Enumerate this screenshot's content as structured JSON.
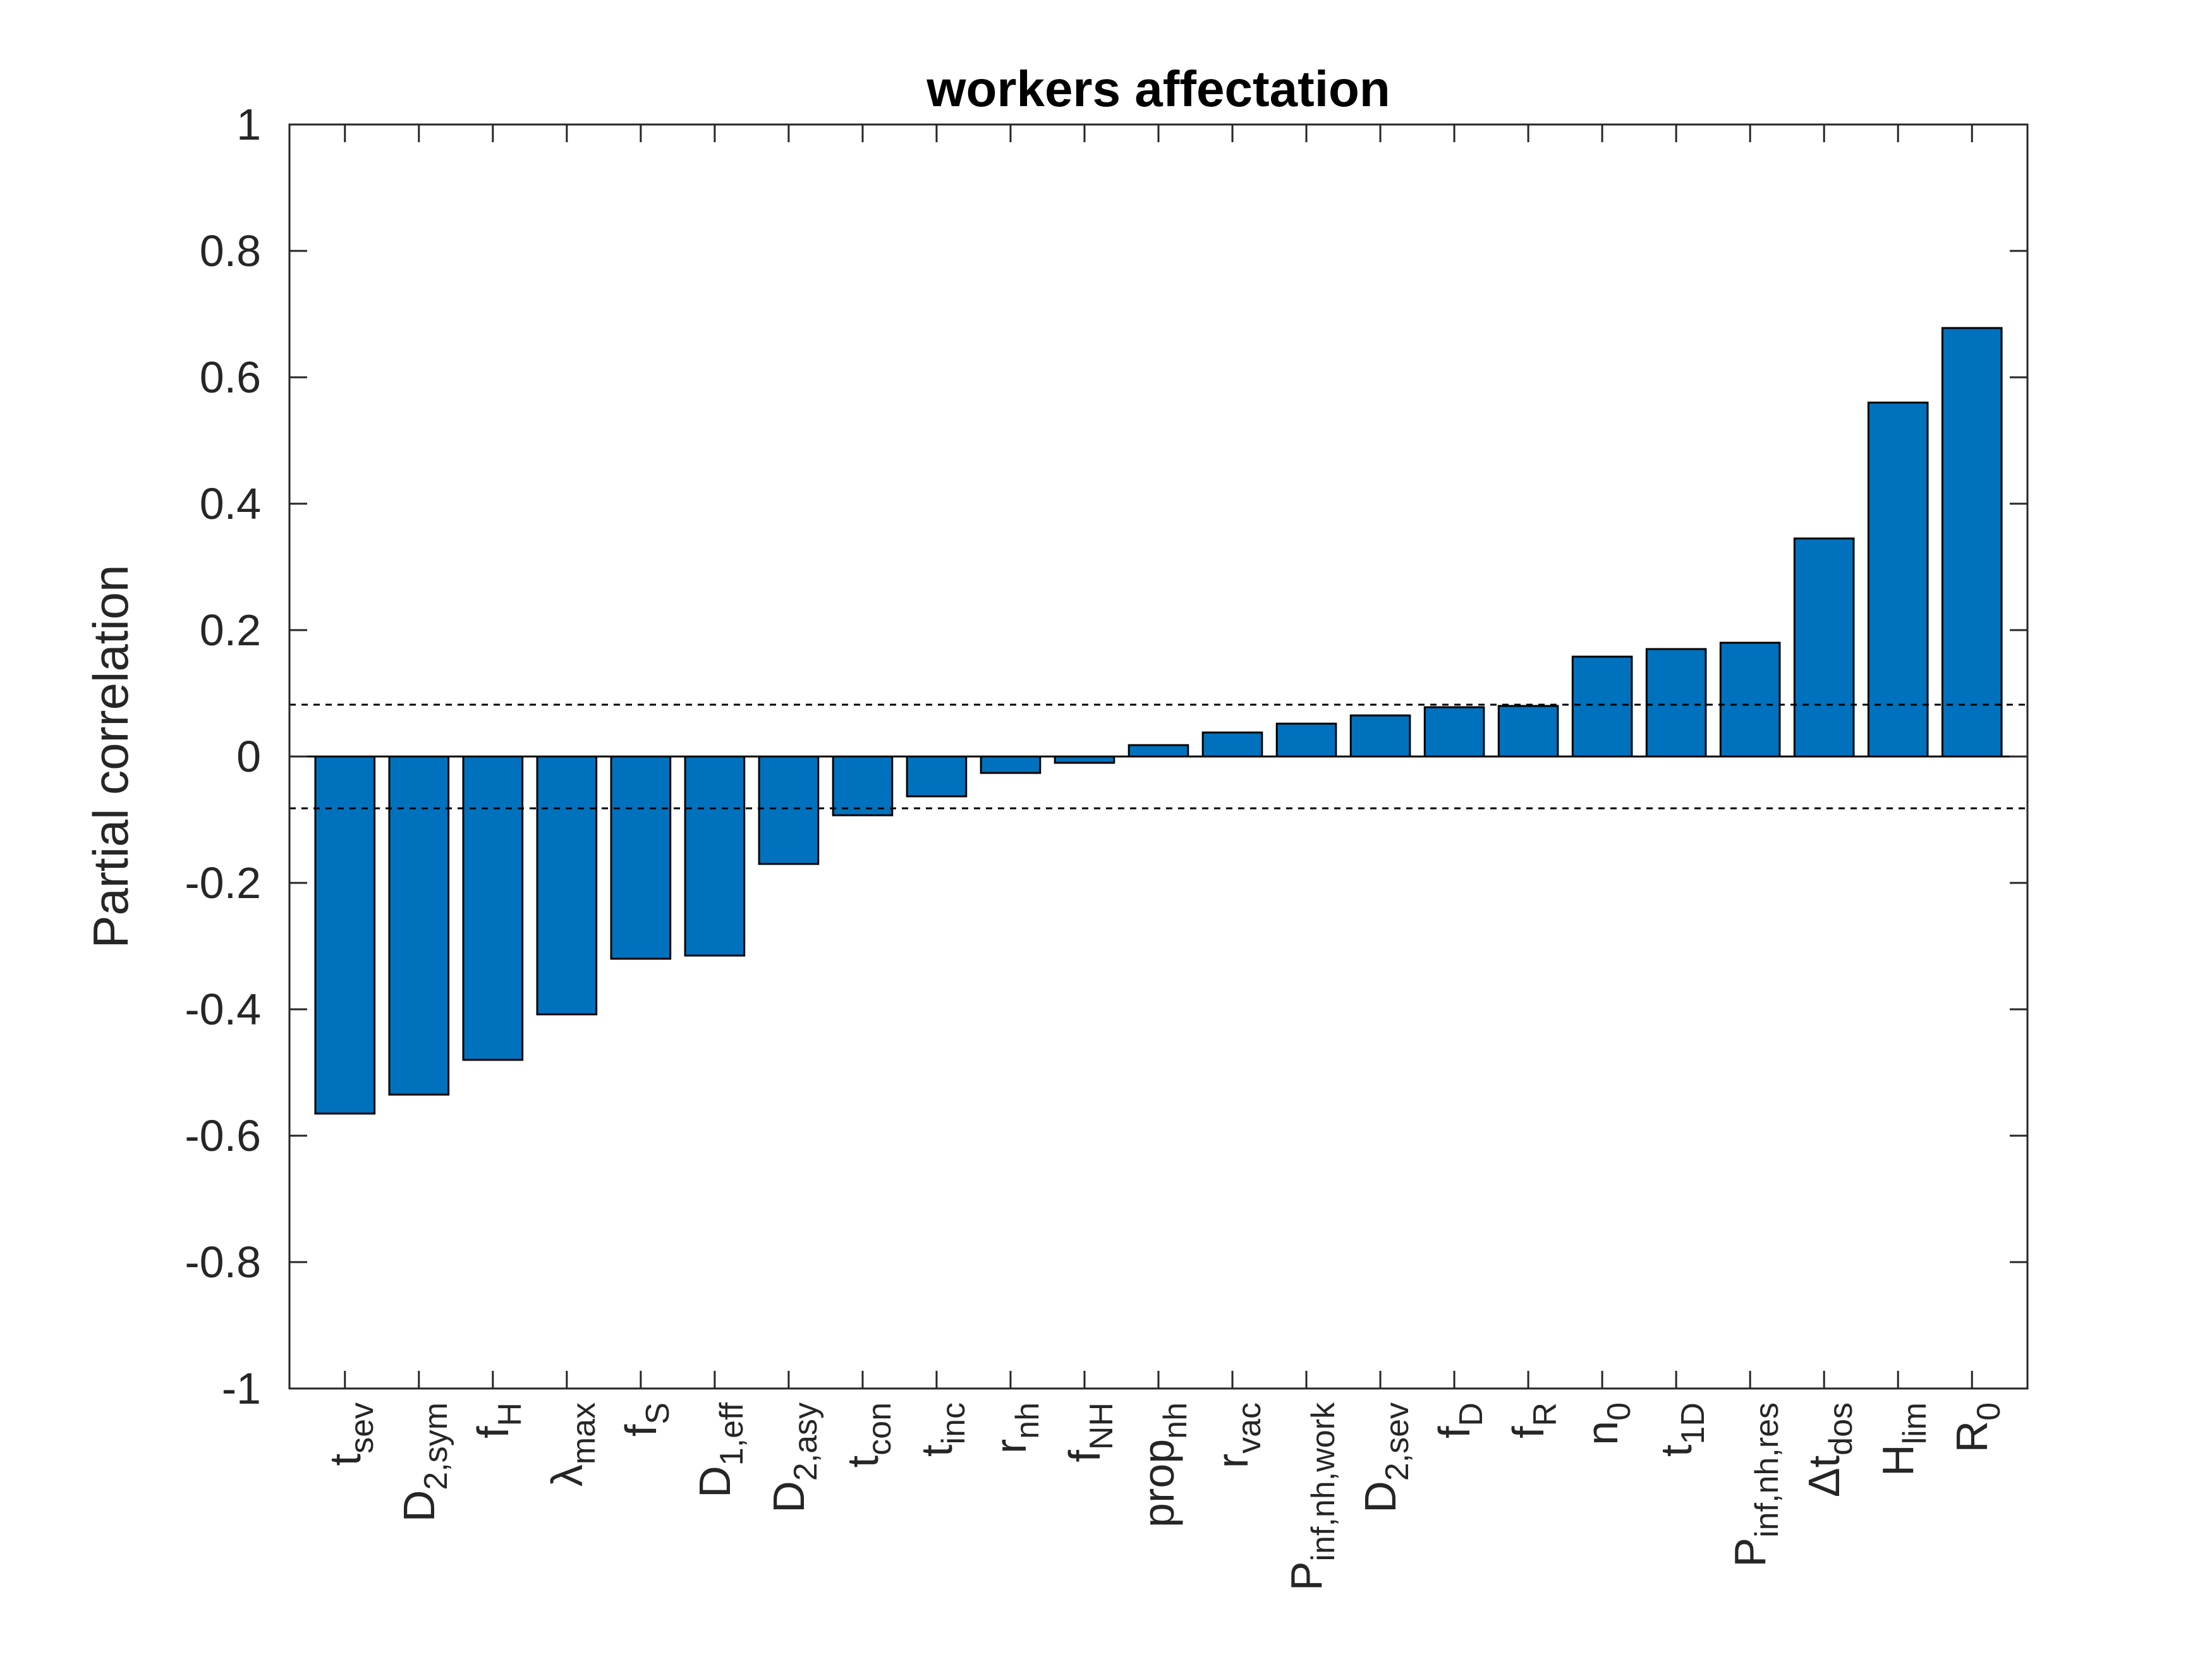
{
  "chart_data": {
    "type": "bar",
    "title": "workers affectation",
    "xlabel": "",
    "ylabel": "Partial correlation",
    "ylim": [
      -1,
      1
    ],
    "yticks": [
      -1,
      -0.8,
      -0.6,
      -0.4,
      -0.2,
      0,
      0.2,
      0.4,
      0.6,
      0.8,
      1
    ],
    "ytick_labels": [
      "-1",
      "-0.8",
      "-0.6",
      "-0.4",
      "-0.2",
      "0",
      "0.2",
      "0.4",
      "0.6",
      "0.8",
      "1"
    ],
    "threshold": 0.082,
    "bar_color": "#0072BD",
    "categories": [
      {
        "base": "t",
        "sub": "sev"
      },
      {
        "base": "D",
        "sub": "2,sym"
      },
      {
        "base": "f",
        "sub": "H"
      },
      {
        "base": "λ",
        "sub": "max"
      },
      {
        "base": "f",
        "sub": "S"
      },
      {
        "base": "D",
        "sub": "1,eff"
      },
      {
        "base": "D",
        "sub": "2,asy"
      },
      {
        "base": "t",
        "sub": "con"
      },
      {
        "base": "t",
        "sub": "inc"
      },
      {
        "base": "r",
        "sub": "nh"
      },
      {
        "base": "f",
        "sub": "NH"
      },
      {
        "base": "prop",
        "sub": "nh"
      },
      {
        "base": "r",
        "sub": "vac"
      },
      {
        "base": "P",
        "sub": "inf,nh,work"
      },
      {
        "base": "D",
        "sub": "2,sev"
      },
      {
        "base": "f",
        "sub": "D"
      },
      {
        "base": "f",
        "sub": "R"
      },
      {
        "base": "n",
        "sub": "0"
      },
      {
        "base": "t",
        "sub": "1D"
      },
      {
        "base": "P",
        "sub": "inf,nh,res"
      },
      {
        "base": "Δt",
        "sub": "dos"
      },
      {
        "base": "H",
        "sub": "lim"
      },
      {
        "base": "R",
        "sub": "0"
      }
    ],
    "values": [
      -0.565,
      -0.535,
      -0.48,
      -0.408,
      -0.32,
      -0.315,
      -0.17,
      -0.093,
      -0.063,
      -0.026,
      -0.01,
      0.018,
      0.038,
      0.052,
      0.065,
      0.078,
      0.08,
      0.158,
      0.17,
      0.18,
      0.345,
      0.56,
      0.678
    ]
  }
}
